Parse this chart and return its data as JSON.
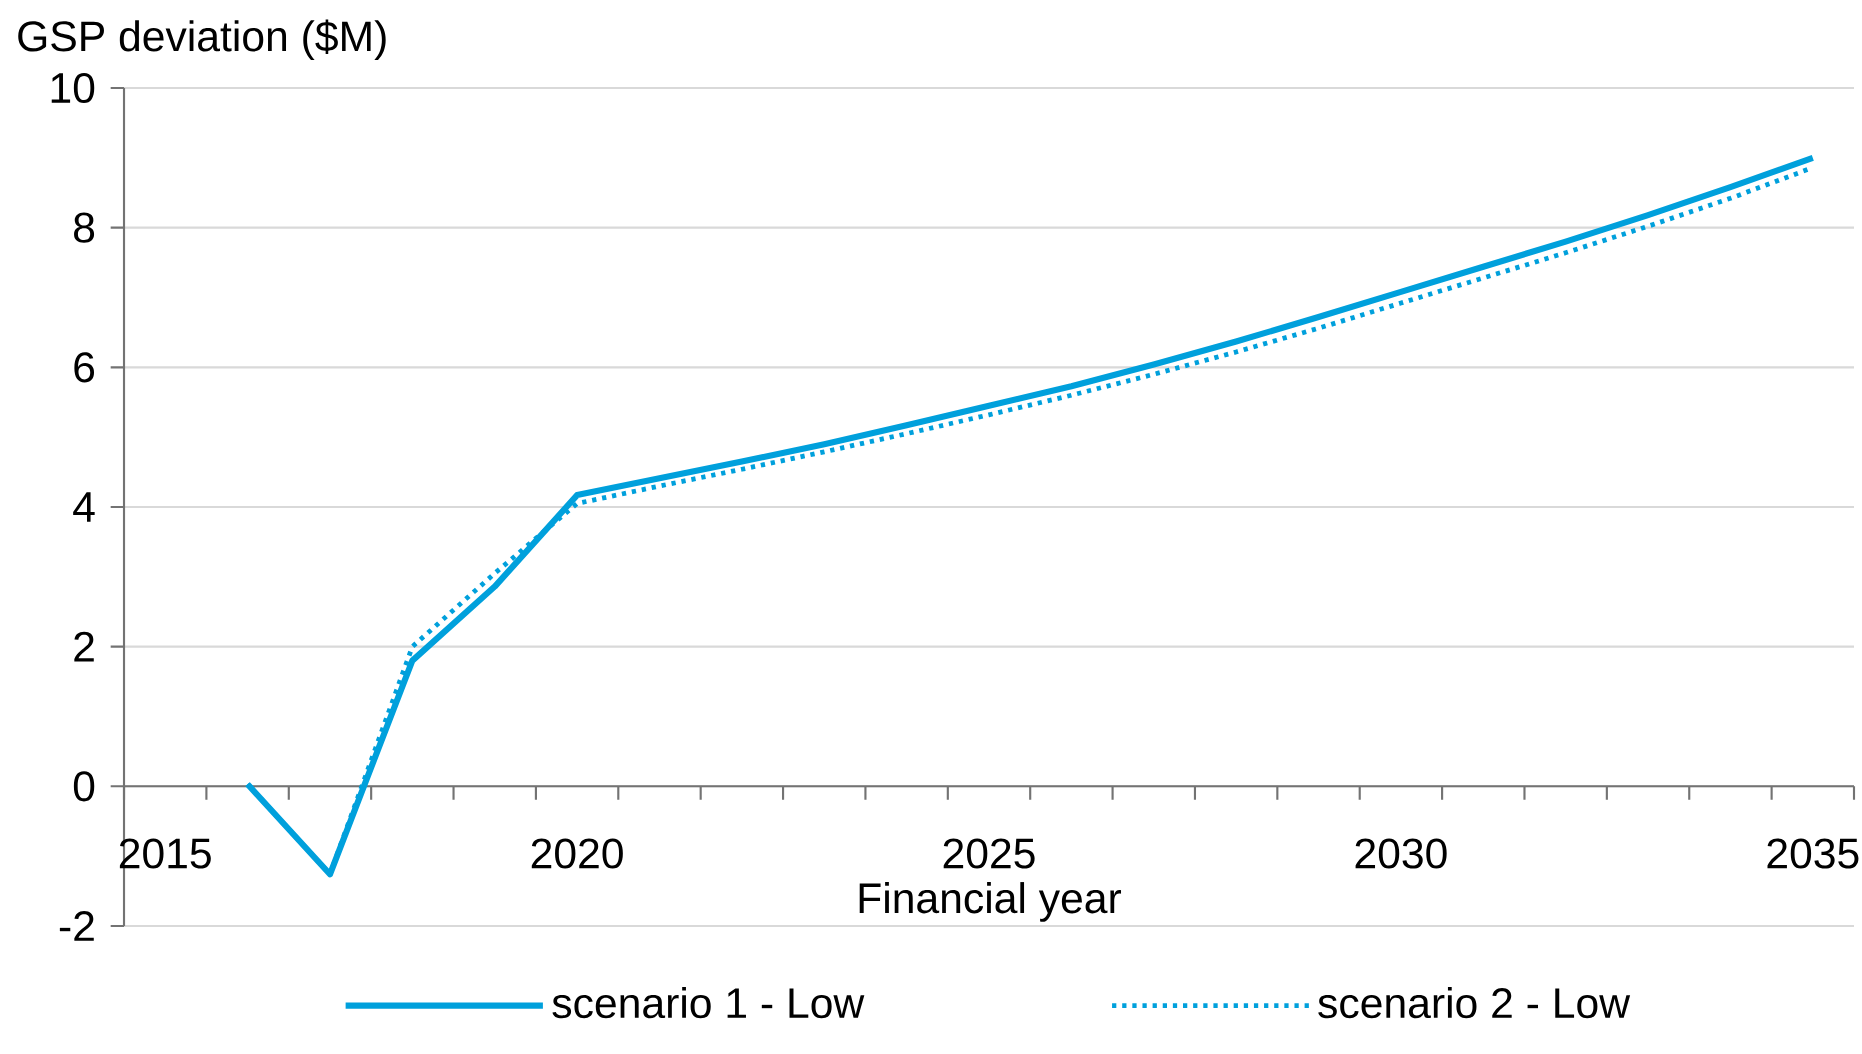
{
  "chart_data": {
    "type": "line",
    "xlabel": "Financial year",
    "ylabel": "GSP deviation ($M)",
    "categories": [
      "2015",
      null,
      null,
      null,
      null,
      "2020",
      null,
      null,
      null,
      null,
      "2025",
      null,
      null,
      null,
      null,
      "2030",
      null,
      null,
      null,
      null,
      "2035"
    ],
    "ylim": [
      -2,
      10
    ],
    "yticks": [
      -2,
      0,
      2,
      4,
      6,
      8,
      10
    ],
    "grid": "y",
    "legend": "bottom",
    "series": [
      {
        "name": "scenario 1 - Low",
        "color": "#00a0dc",
        "line_style": "solid",
        "values": [
          null,
          0.03,
          -1.26,
          1.8,
          2.86,
          4.17,
          4.41,
          4.65,
          4.9,
          5.17,
          5.45,
          5.73,
          6.04,
          6.37,
          6.72,
          7.08,
          7.44,
          7.8,
          8.18,
          8.58,
          9.0
        ]
      },
      {
        "name": "scenario 2 - Low",
        "color": "#00a0dc",
        "line_style": "dotted",
        "values": [
          null,
          0.03,
          -1.26,
          2.0,
          3.05,
          4.05,
          4.3,
          4.54,
          4.79,
          5.05,
          5.32,
          5.6,
          5.9,
          6.22,
          6.56,
          6.92,
          7.28,
          7.64,
          8.02,
          8.42,
          8.86
        ]
      }
    ]
  }
}
